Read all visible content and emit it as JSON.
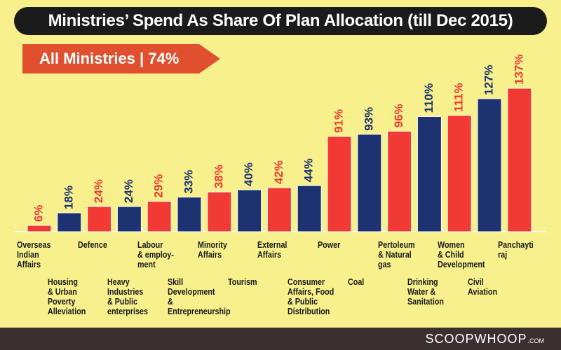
{
  "header": {
    "title": "Ministries’ Spend As Share Of Plan Allocation (till Dec 2015)",
    "summary": "All Ministries  |  74%"
  },
  "footer": {
    "brand": "SCOOPWHOOP",
    "brand_suffix": ".COM"
  },
  "colors": {
    "red": "#f03a33",
    "blue": "#1d3270",
    "background": "#f7f08d",
    "title_bg": "#1b1b1b",
    "summary_bg": "#e0502f"
  },
  "chart_data": {
    "type": "bar",
    "title": "Ministries’ Spend As Share Of Plan Allocation (till Dec 2015)",
    "xlabel": "",
    "ylabel": "",
    "ylim": [
      0,
      140
    ],
    "grid": false,
    "categories": [
      "Overseas Indian Affairs",
      "Housing & Urban Poverty Alleviation",
      "Defence",
      "Heavy Industries & Public enterprises",
      "Labour & employment",
      "Skill Development & Entrepreneurship",
      "Minority Affairs",
      "Tourism",
      "External Affairs",
      "Consumer Affairs, Food & Public Distribution",
      "Power",
      "Coal",
      "Pertoleum & Natural gas",
      "Drinking Water & Sanitation",
      "Women & Child Development",
      "Civil Aviation",
      "Panchayti raj"
    ],
    "values": [
      6,
      18,
      24,
      24,
      29,
      33,
      38,
      40,
      42,
      44,
      91,
      93,
      96,
      110,
      111,
      127,
      137
    ],
    "value_labels": [
      "6%",
      "18%",
      "24%",
      "24%",
      "29%",
      "33%",
      "38%",
      "40%",
      "42%",
      "44%",
      "91%",
      "93%",
      "96%",
      "110%",
      "111%",
      "127%",
      "137%"
    ],
    "bar_colors": [
      "red",
      "blue",
      "red",
      "blue",
      "red",
      "blue",
      "red",
      "blue",
      "red",
      "blue",
      "red",
      "blue",
      "red",
      "blue",
      "red",
      "blue",
      "red"
    ],
    "category_display": [
      "Overseas\nIndian\nAffairs",
      "Housing\n& Urban\nPoverty\nAlleviation",
      "Defence",
      "Heavy\nIndustries\n& Public\nenterprises",
      "Labour\n& employ-\nment",
      "Skill\nDevelopment\n& Entrepreneurship",
      "Minority\nAffairs",
      "Tourism",
      "External\nAffairs",
      "Consumer\nAffairs, Food\n& Public\nDistribution",
      "Power",
      "Coal",
      "Pertoleum\n& Natural\ngas",
      "Drinking\nWater &\nSanitation",
      "Women\n& Child\nDevelopment",
      "Civil\nAviation",
      "Panchayti\nraj"
    ]
  }
}
